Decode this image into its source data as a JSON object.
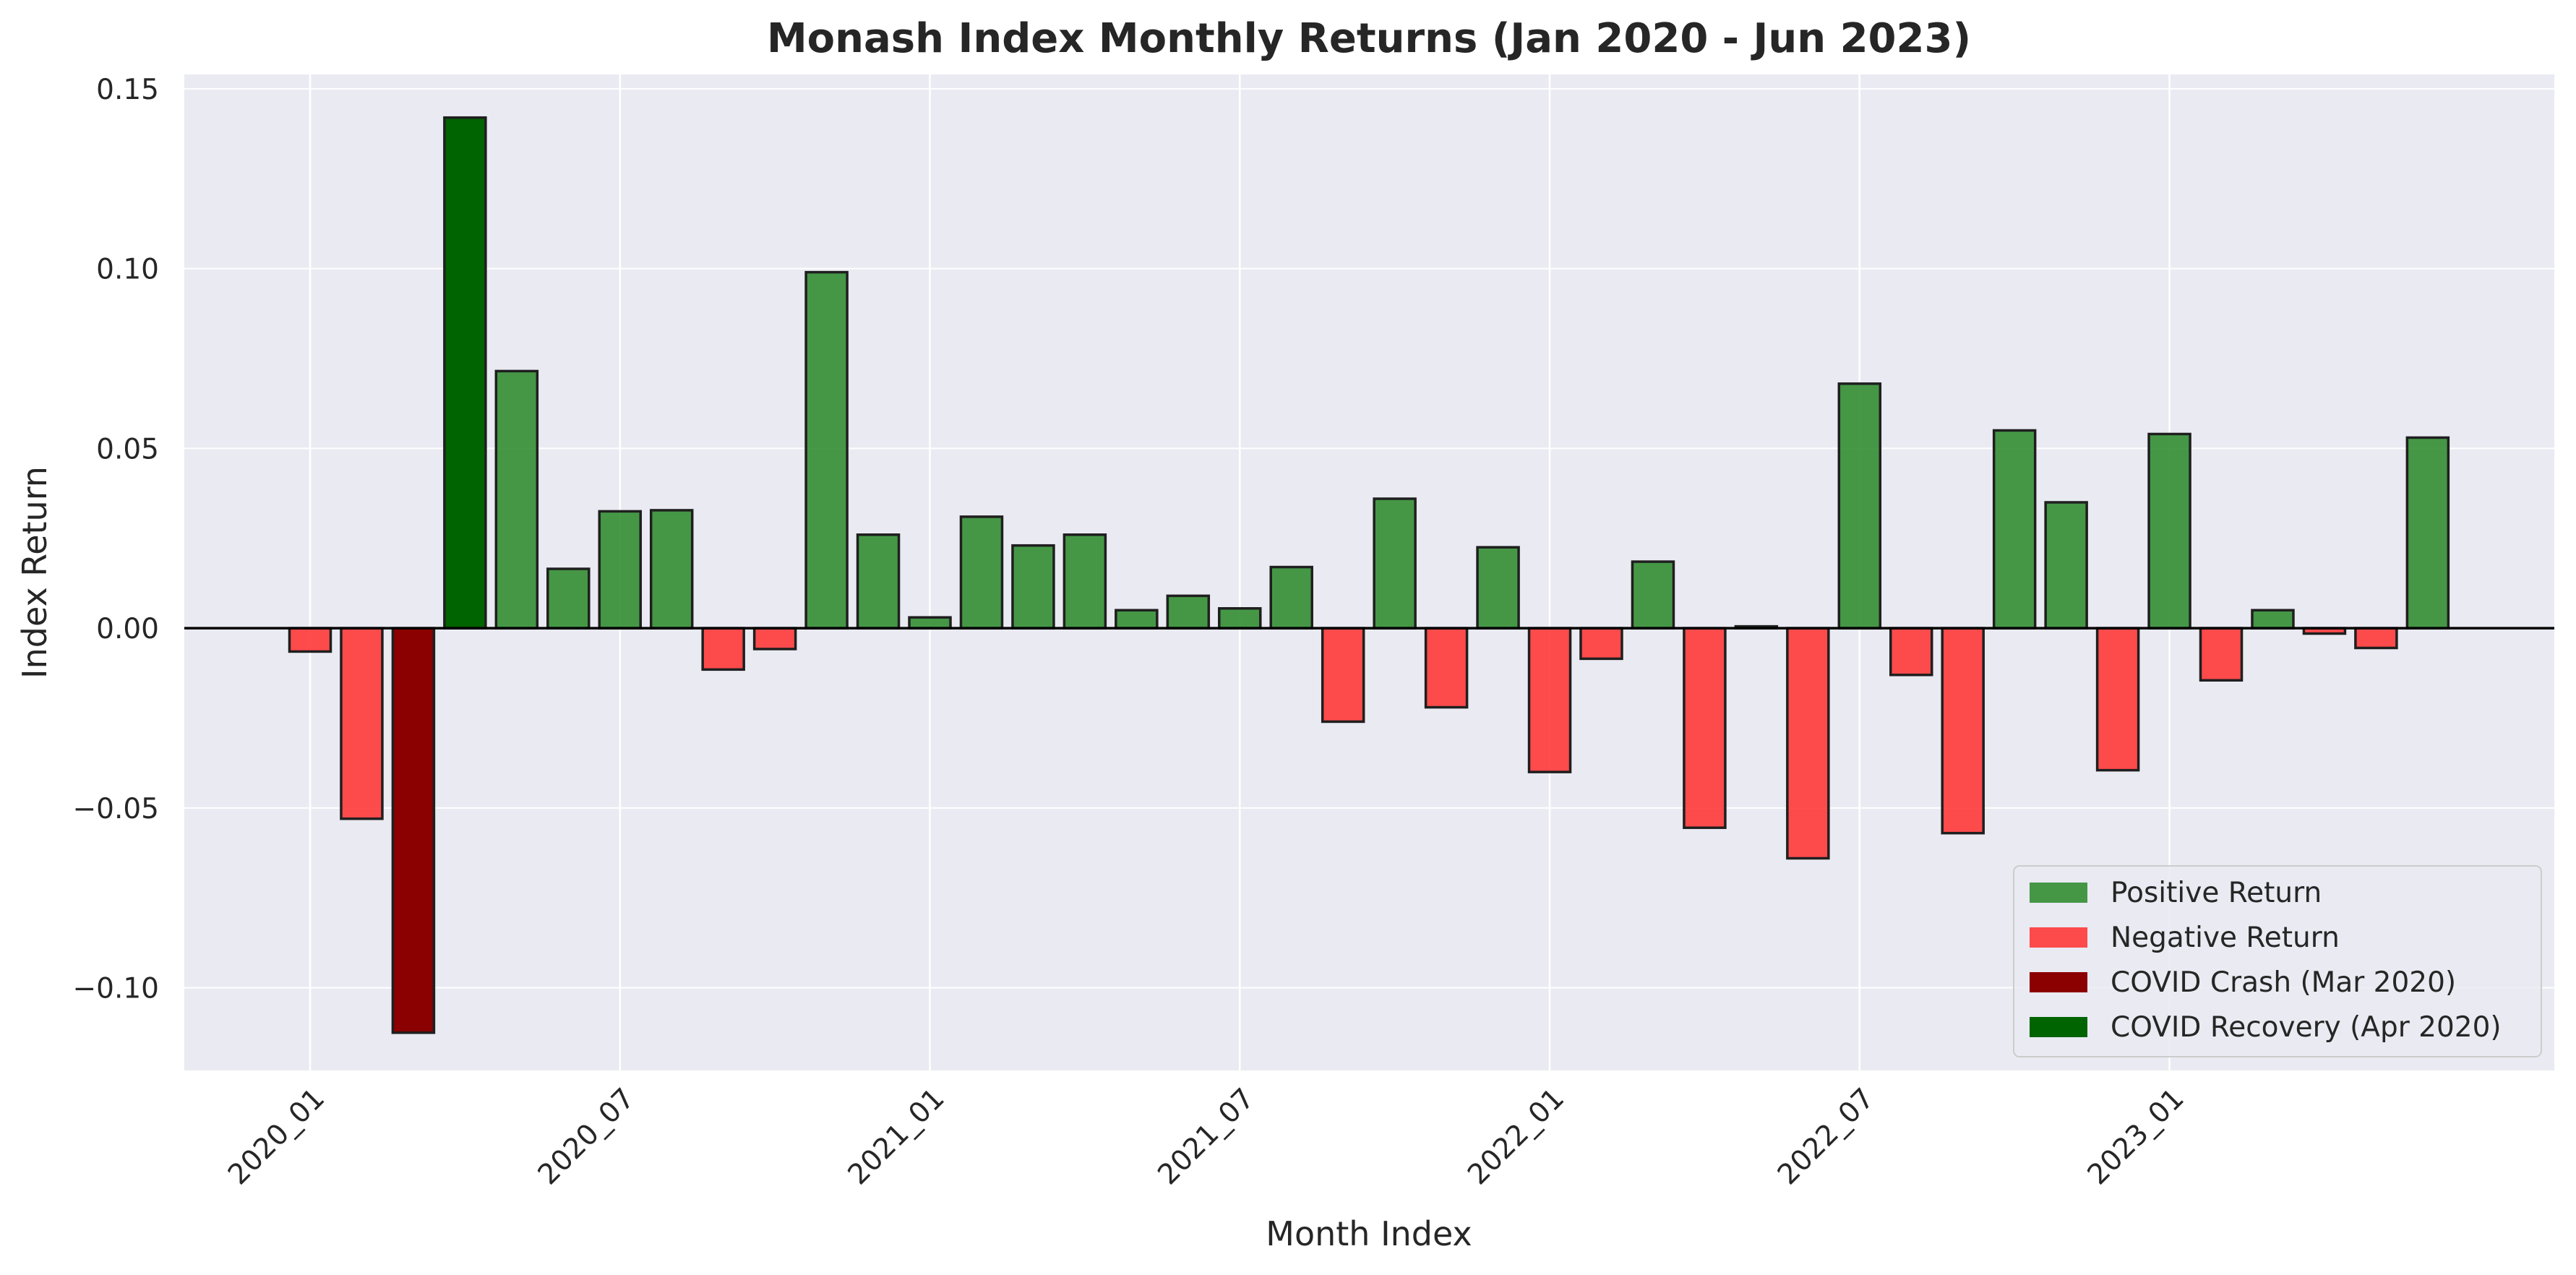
{
  "chart_data": {
    "type": "bar",
    "title": "Monash Index Monthly Returns (Jan 2020 - Jun 2023)",
    "xlabel": "Month Index",
    "ylabel": "Index Return",
    "ylim": [
      -0.123,
      0.154
    ],
    "yticks": [
      0.15,
      0.1,
      0.05,
      0.0,
      -0.05,
      -0.1
    ],
    "ytick_labels": [
      "0.15",
      "0.10",
      "0.05",
      "0.00",
      "−0.05",
      "−0.10"
    ],
    "xticks": [
      {
        "index": 0,
        "label": "2020_01"
      },
      {
        "index": 6,
        "label": "2020_07"
      },
      {
        "index": 12,
        "label": "2021_01"
      },
      {
        "index": 18,
        "label": "2021_07"
      },
      {
        "index": 24,
        "label": "2022_01"
      },
      {
        "index": 30,
        "label": "2022_07"
      },
      {
        "index": 36,
        "label": "2023_01"
      }
    ],
    "grid": true,
    "legend_position": "bottom-right",
    "colors": {
      "positive": "#2e8b2e",
      "negative": "#ff3333",
      "covid_crash": "#8b0000",
      "covid_recovery": "#006400",
      "background": "#eaeaf2",
      "zero_line": "#000000"
    },
    "legend": [
      {
        "label": "Positive Return",
        "color": "#2e8b2e"
      },
      {
        "label": "Negative Return",
        "color": "#ff3333"
      },
      {
        "label": "COVID Crash (Mar 2020)",
        "color": "#8b0000"
      },
      {
        "label": "COVID Recovery (Apr 2020)",
        "color": "#006400"
      }
    ],
    "values": [
      -0.0065,
      -0.053,
      -0.1125,
      0.142,
      0.0715,
      0.0165,
      0.0325,
      0.0328,
      -0.0115,
      -0.0058,
      0.099,
      0.026,
      0.003,
      0.031,
      0.023,
      0.026,
      0.005,
      0.009,
      0.0055,
      0.017,
      -0.026,
      0.036,
      -0.022,
      0.0225,
      -0.04,
      -0.0085,
      0.0185,
      -0.0555,
      0.0005,
      -0.064,
      0.068,
      -0.013,
      -0.057,
      0.055,
      0.035,
      -0.0395,
      0.054,
      -0.0145,
      0.005,
      -0.0015,
      -0.0055,
      0.053
    ],
    "highlight": {
      "covid_crash_index": 2,
      "covid_recovery_index": 3
    }
  }
}
